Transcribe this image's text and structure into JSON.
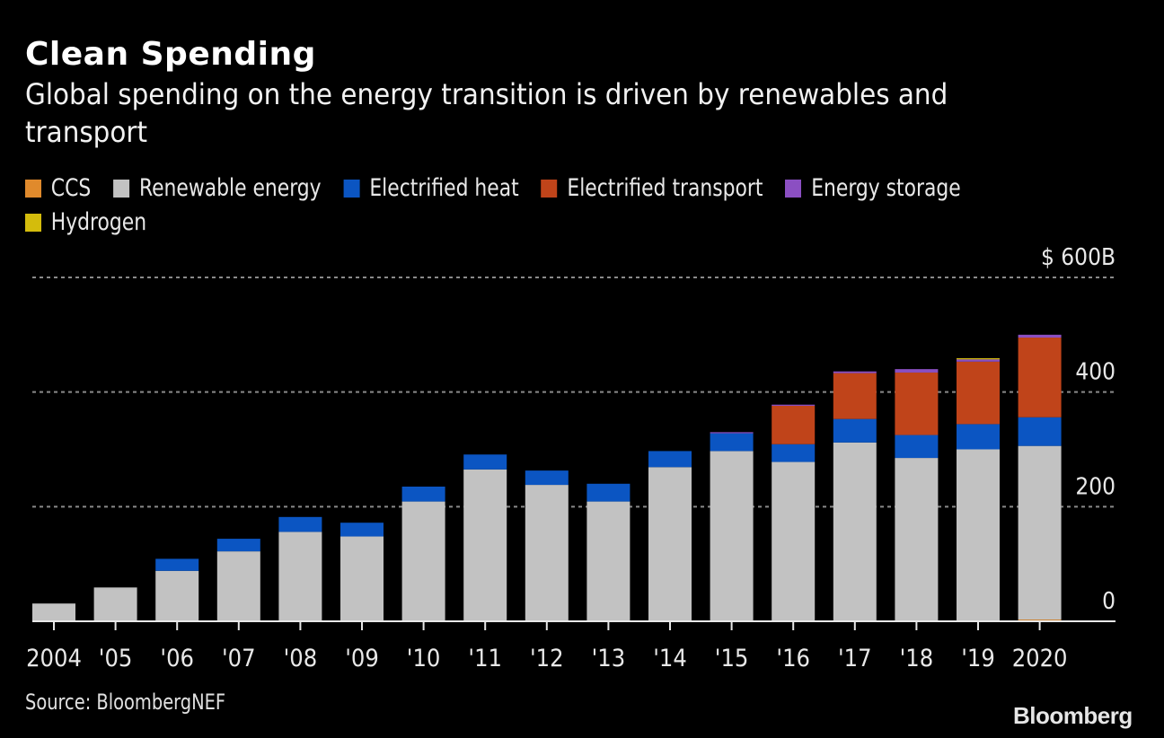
{
  "header": {
    "title": "Clean Spending",
    "subtitle": "Global spending on the energy transition is driven by renewables and transport"
  },
  "footer": {
    "source": "Source: BloombergNEF",
    "logo": "Bloomberg"
  },
  "chart_data": {
    "type": "bar",
    "stacked": true,
    "title": "Clean Spending",
    "subtitle": "Global spending on the energy transition is driven by renewables and transport",
    "xlabel": "",
    "ylabel": "",
    "y_unit_prefix": "$",
    "y_unit_suffix": "B",
    "ylim": [
      0,
      600
    ],
    "yticks": [
      0,
      200,
      400,
      600
    ],
    "ytick_labels": [
      "0",
      "200",
      "400",
      "$ 600B"
    ],
    "grid": true,
    "legend_position": "top-left",
    "categories": [
      "2004",
      "'05",
      "'06",
      "'07",
      "'08",
      "'09",
      "'10",
      "'11",
      "'12",
      "'13",
      "'14",
      "'15",
      "'16",
      "'17",
      "'18",
      "'19",
      "2020"
    ],
    "series": [
      {
        "name": "CCS",
        "color": "#E08A2C",
        "values": [
          0,
          0,
          0,
          0,
          0,
          0,
          0,
          0,
          0,
          0,
          0,
          0,
          0,
          0,
          0,
          0,
          3
        ]
      },
      {
        "name": "Renewable energy",
        "color": "#C2C2C2",
        "values": [
          31,
          59,
          88,
          122,
          156,
          148,
          209,
          265,
          238,
          209,
          269,
          297,
          278,
          312,
          285,
          300,
          303
        ]
      },
      {
        "name": "Electrified heat",
        "color": "#0B55C2",
        "values": [
          0,
          0,
          21,
          22,
          26,
          24,
          26,
          26,
          25,
          31,
          28,
          31,
          31,
          41,
          40,
          44,
          50
        ]
      },
      {
        "name": "Electrified transport",
        "color": "#C0441A",
        "values": [
          0,
          0,
          0,
          0,
          0,
          0,
          0,
          0,
          0,
          0,
          0,
          0,
          67,
          80,
          109,
          109,
          139
        ]
      },
      {
        "name": "Energy storage",
        "color": "#8B4FC2",
        "values": [
          0,
          0,
          0,
          0,
          0,
          0,
          0,
          0,
          0,
          0,
          0,
          2,
          2,
          3,
          6,
          4,
          5
        ]
      },
      {
        "name": "Hydrogen",
        "color": "#D4BC0C",
        "values": [
          0,
          0,
          0,
          0,
          0,
          0,
          0,
          0,
          0,
          0,
          0,
          0,
          0,
          0,
          0,
          2,
          0
        ]
      }
    ]
  }
}
